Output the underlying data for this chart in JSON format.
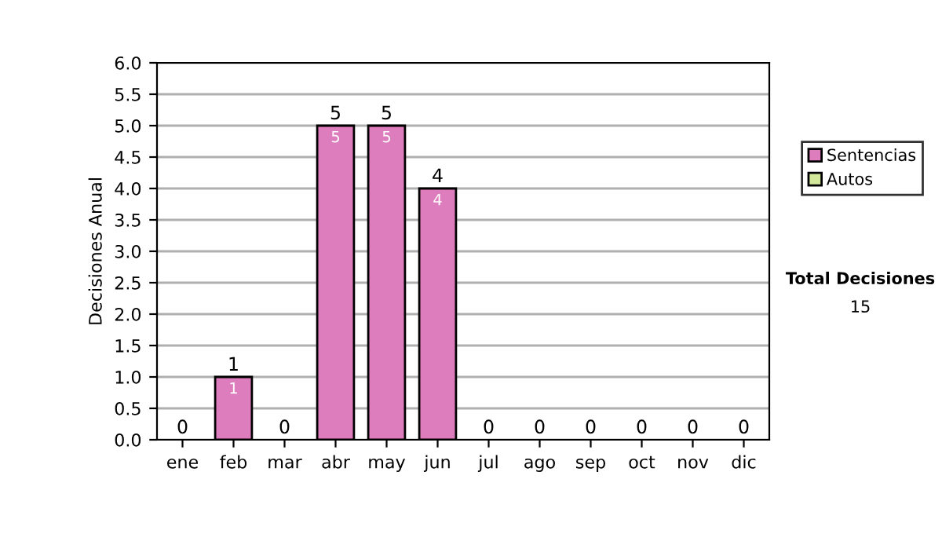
{
  "chart_data": {
    "type": "bar",
    "stacked": true,
    "ylabel": "Decisiones Anual",
    "categories": [
      "ene",
      "feb",
      "mar",
      "abr",
      "may",
      "jun",
      "jul",
      "ago",
      "sep",
      "oct",
      "nov",
      "dic"
    ],
    "series": [
      {
        "name": "Sentencias",
        "color": "#dd7dbd",
        "values": [
          0,
          1,
          0,
          5,
          5,
          4,
          0,
          0,
          0,
          0,
          0,
          0
        ],
        "value_labels": [
          null,
          "1",
          null,
          "5",
          "5",
          "4",
          null,
          null,
          null,
          null,
          null,
          null
        ]
      },
      {
        "name": "Autos",
        "color": "#d4e89c",
        "values": [
          0,
          0,
          0,
          0,
          0,
          0,
          0,
          0,
          0,
          0,
          0,
          0
        ]
      }
    ],
    "totals": [
      "0",
      "1",
      "0",
      "5",
      "5",
      "4",
      "0",
      "0",
      "0",
      "0",
      "0",
      "0"
    ],
    "ylim": [
      0,
      6
    ],
    "yticks": [
      {
        "value": 0,
        "label": "0.0"
      },
      {
        "value": 0.5,
        "label": "0.5"
      },
      {
        "value": 1,
        "label": "1.0"
      },
      {
        "value": 1.5,
        "label": "1.5"
      },
      {
        "value": 2,
        "label": "2.0"
      },
      {
        "value": 2.5,
        "label": "2.5"
      },
      {
        "value": 3,
        "label": "3.0"
      },
      {
        "value": 3.5,
        "label": "3.5"
      },
      {
        "value": 4,
        "label": "4.0"
      },
      {
        "value": 4.5,
        "label": "4.5"
      },
      {
        "value": 5,
        "label": "5.0"
      },
      {
        "value": 5.5,
        "label": "5.5"
      },
      {
        "value": 6,
        "label": "6.0"
      }
    ],
    "grid": "y",
    "legend": "right",
    "annotations": [
      "Total Decisiones",
      "15"
    ]
  }
}
